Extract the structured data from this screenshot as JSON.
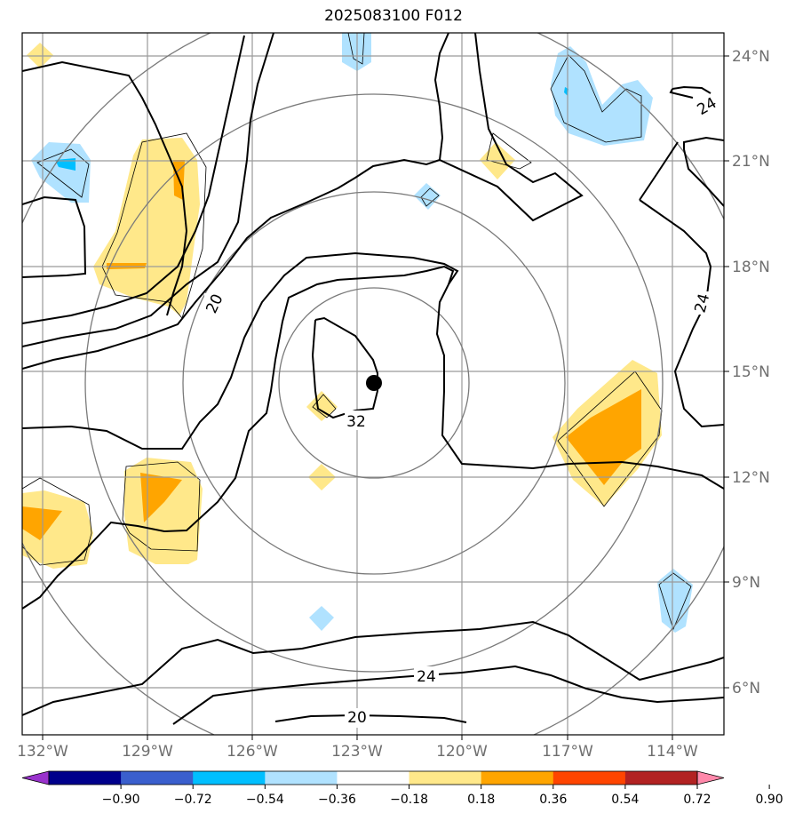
{
  "title": "2025083100 F012",
  "map": {
    "lon_range": [
      -132.5,
      -112.7
    ],
    "lat_range": [
      4.8,
      24.8
    ],
    "lon_labels": [
      "132°W",
      "129°W",
      "126°W",
      "123°W",
      "120°W",
      "117°W",
      "114°W"
    ],
    "lon_values": [
      -132,
      -129,
      -126,
      -123,
      -120,
      -117,
      -114
    ],
    "lat_labels": [
      "24°N",
      "21°N",
      "18°N",
      "15°N",
      "12°N",
      "9°N",
      "6°N"
    ],
    "lat_values": [
      24,
      21,
      18,
      15,
      12,
      9,
      6
    ],
    "storm_center": {
      "lon": -122.6,
      "lat": 14.7
    },
    "contour_labels": [
      {
        "text": "20",
        "lon": -127.9,
        "lat": 16.9
      },
      {
        "text": "32",
        "lon": -123.0,
        "lat": 13.6
      },
      {
        "text": "24",
        "lon": -121.0,
        "lat": 6.4
      },
      {
        "text": "20",
        "lon": -123.0,
        "lat": 5.5
      },
      {
        "text": "24",
        "lon": -113.8,
        "lat": 16.9
      },
      {
        "text": "24",
        "lon": -113.5,
        "lat": 23.0
      }
    ]
  },
  "colorbar": {
    "tick_labels": [
      "−0.90",
      "−0.72",
      "−0.54",
      "−0.36",
      "−0.18",
      "0.18",
      "0.36",
      "0.54",
      "0.72",
      "0.90"
    ],
    "colors": [
      "#9932cc",
      "#00008b",
      "#3a5fcd",
      "#00bfff",
      "#b0e2ff",
      "#ffffff",
      "#ffe88a",
      "#ffa500",
      "#ff4500",
      "#b22222",
      "#ff88aa"
    ]
  }
}
